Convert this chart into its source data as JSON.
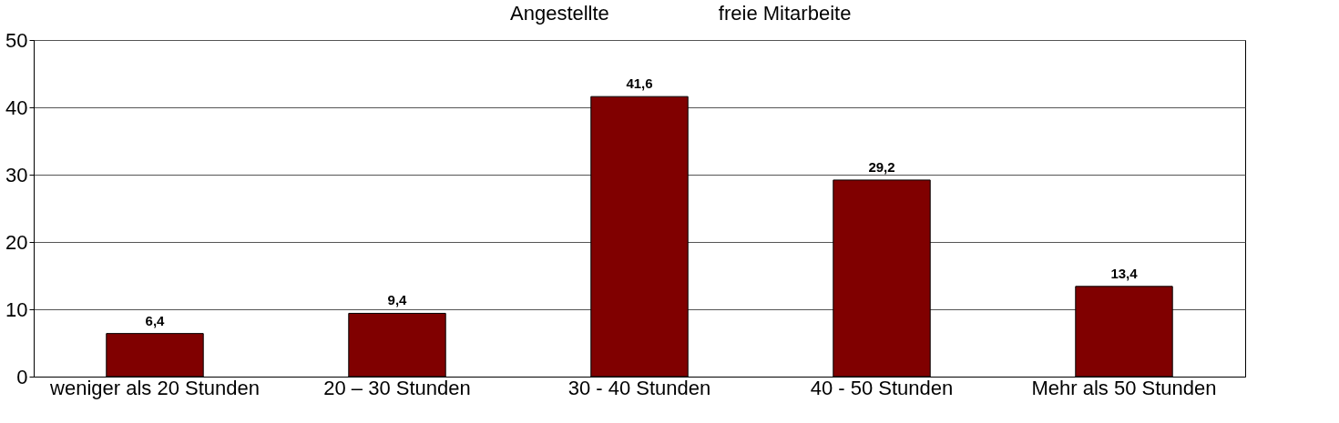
{
  "chart_data": {
    "type": "bar",
    "categories": [
      "weniger als 20 Stunden",
      "20 – 30 Stunden",
      "30 - 40 Stunden",
      "40 - 50 Stunden",
      "Mehr als 50 Stunden"
    ],
    "values": [
      6.4,
      9.4,
      41.6,
      29.2,
      13.4
    ],
    "value_labels": [
      "6,4",
      "9,4",
      "41,6",
      "29,2",
      "13,4"
    ],
    "color": "#800000",
    "ylim": [
      0,
      50
    ],
    "yticks": [
      0,
      10,
      20,
      30,
      40,
      50
    ],
    "grid": "y",
    "annotations": [
      "Angestellte",
      "freie Mitarbeite"
    ]
  }
}
